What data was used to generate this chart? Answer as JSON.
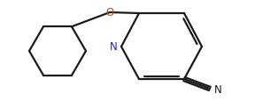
{
  "bg_color": "#ffffff",
  "bond_color": "#1a1a1a",
  "atom_colors": {
    "N_pyridine": "#2020cc",
    "O": "#cc4400",
    "N_cyano": "#1a1a1a",
    "C": "#1a1a1a"
  },
  "line_width": 1.6,
  "figsize": [
    2.88,
    1.16
  ],
  "dpi": 100
}
